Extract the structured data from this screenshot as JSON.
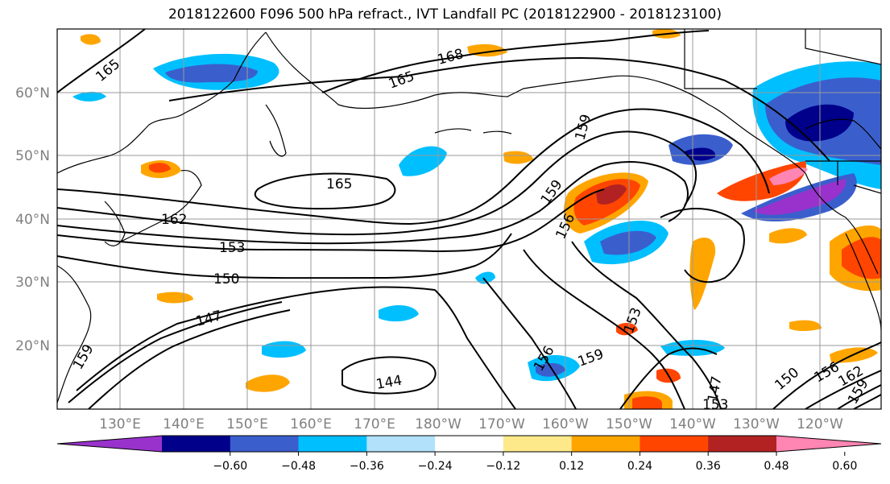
{
  "title": "2018122600 F096 500 hPa refract., IVT Landfall PC (2018122900 - 2018123100)",
  "colors": {
    "contour": "#000000",
    "coast": "#000000",
    "grid": "#9a9a9a",
    "tick_text": "#808080",
    "frame": "#000000"
  },
  "map": {
    "lon_labels": [
      "130°E",
      "140°E",
      "150°E",
      "160°E",
      "170°E",
      "180°W",
      "170°W",
      "160°W",
      "150°W",
      "140°W",
      "130°W",
      "120°W"
    ],
    "lat_labels": [
      "60°N",
      "50°N",
      "40°N",
      "30°N",
      "20°N"
    ],
    "grid": true
  },
  "contour_labels": [
    "165",
    "168",
    "165",
    "165",
    "162",
    "153",
    "150",
    "159",
    "156",
    "147",
    "159",
    "159",
    "153",
    "156",
    "159",
    "144",
    "147",
    "150",
    "156",
    "162",
    "159",
    "153"
  ],
  "colorbar": {
    "colors": [
      "#9932cc",
      "#00008b",
      "#3a5fcd",
      "#00bfff",
      "#b2e2fb",
      "#ffffff",
      "#fde98a",
      "#ffa500",
      "#ff4500",
      "#b22222",
      "#ff85b3"
    ],
    "tick_labels": [
      "−0.60",
      "−0.48",
      "−0.36",
      "−0.24",
      "−0.12",
      "0.12",
      "0.24",
      "0.36",
      "0.48",
      "0.60"
    ],
    "extend": "both"
  }
}
